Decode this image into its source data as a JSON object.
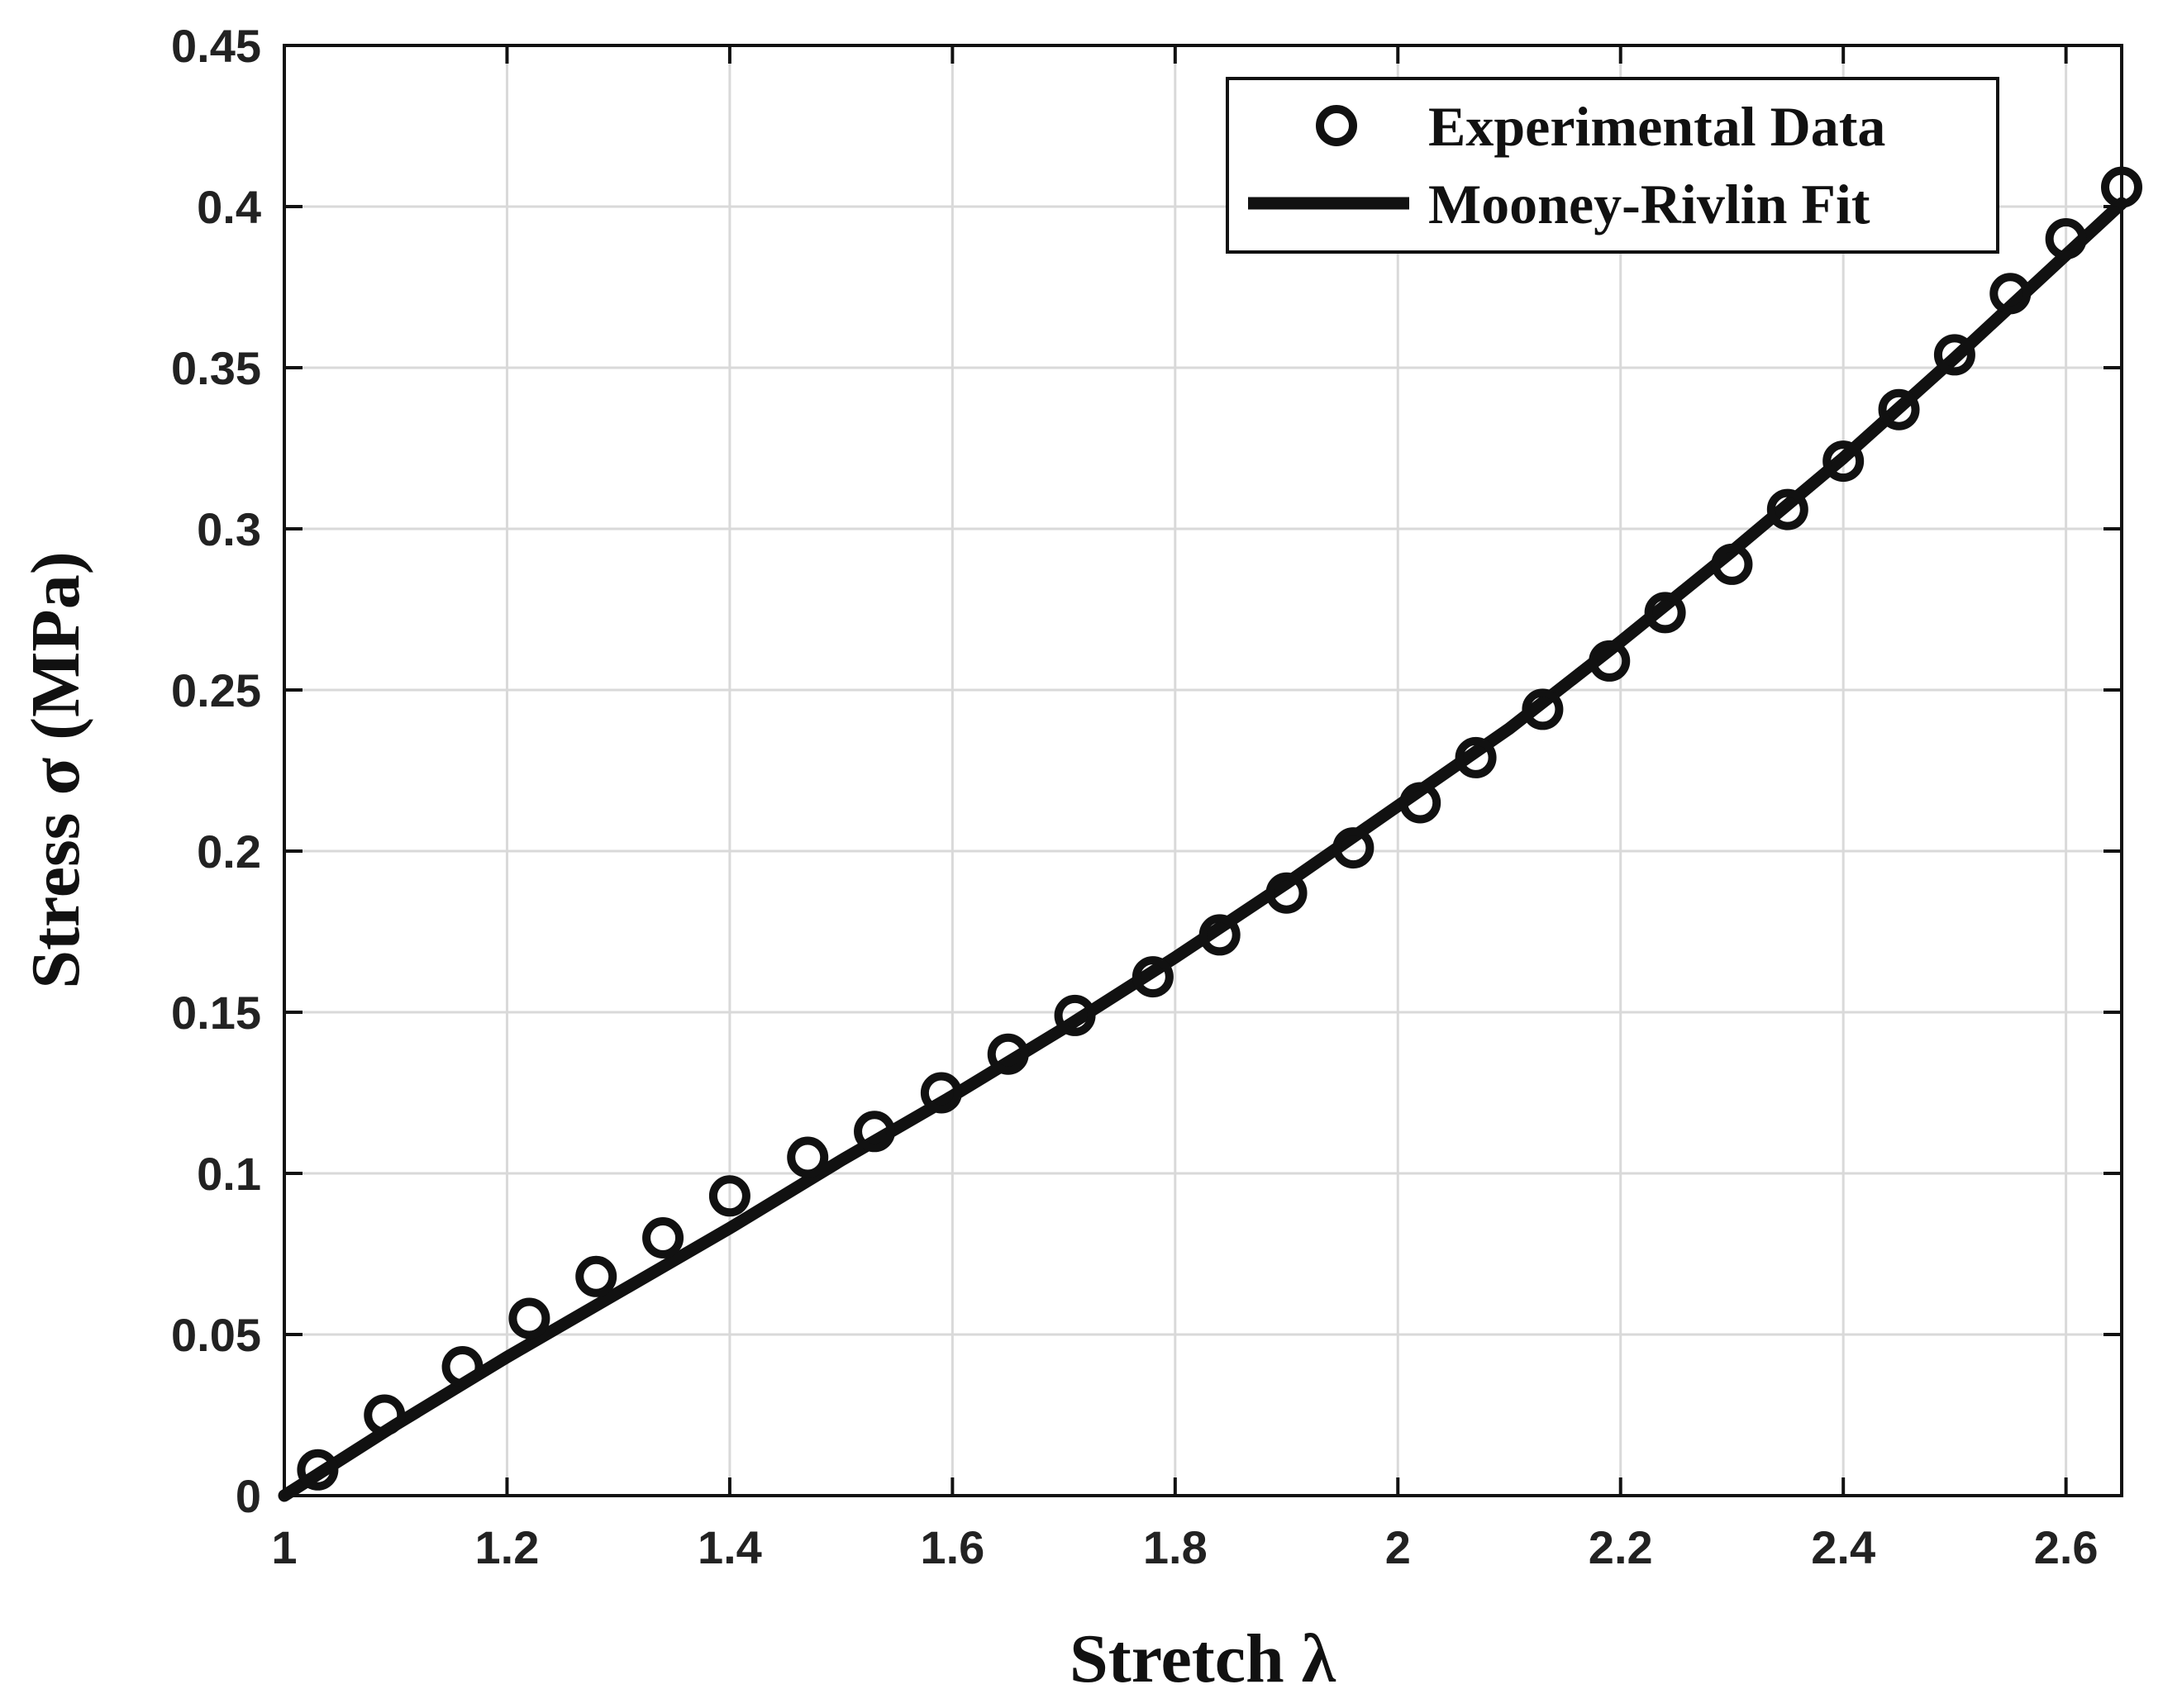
{
  "chart_data": {
    "type": "scatter",
    "xlabel": "Stretch  λ",
    "ylabel": "Stress  σ  (MPa)",
    "xlim": [
      1,
      2.65
    ],
    "ylim": [
      0,
      0.45
    ],
    "grid": true,
    "legend_position": "top-right",
    "x_ticks": [
      1,
      1.2,
      1.4,
      1.6,
      1.8,
      2,
      2.2,
      2.4,
      2.6
    ],
    "x_tick_labels": [
      "1",
      "1.2",
      "1.4",
      "1.6",
      "1.8",
      "2",
      "2.2",
      "2.4",
      "2.6"
    ],
    "y_ticks": [
      0,
      0.05,
      0.1,
      0.15,
      0.2,
      0.25,
      0.3,
      0.35,
      0.4,
      0.45
    ],
    "y_tick_labels": [
      "0",
      "0.05",
      "0.1",
      "0.15",
      "0.2",
      "0.25",
      "0.3",
      "0.35",
      "0.4",
      "0.45"
    ],
    "series": [
      {
        "name": "Experimental Data",
        "kind": "markers",
        "marker": "open-circle",
        "x": [
          1.03,
          1.09,
          1.16,
          1.22,
          1.28,
          1.34,
          1.4,
          1.47,
          1.53,
          1.59,
          1.65,
          1.71,
          1.78,
          1.84,
          1.9,
          1.96,
          2.02,
          2.07,
          2.13,
          2.19,
          2.24,
          2.3,
          2.35,
          2.4,
          2.45,
          2.5,
          2.55,
          2.6,
          2.65
        ],
        "y": [
          0.008,
          0.025,
          0.04,
          0.055,
          0.068,
          0.08,
          0.093,
          0.105,
          0.113,
          0.125,
          0.137,
          0.149,
          0.161,
          0.174,
          0.187,
          0.201,
          0.215,
          0.229,
          0.244,
          0.259,
          0.274,
          0.289,
          0.306,
          0.321,
          0.337,
          0.354,
          0.373,
          0.39,
          0.406
        ]
      },
      {
        "name": "Mooney-Rivlin Fit",
        "kind": "line",
        "x": [
          1.0,
          1.1,
          1.2,
          1.3,
          1.4,
          1.5,
          1.6,
          1.7,
          1.8,
          1.9,
          2.0,
          2.1,
          2.2,
          2.3,
          2.4,
          2.5,
          2.6,
          2.65
        ],
        "y": [
          0.0,
          0.022,
          0.043,
          0.063,
          0.083,
          0.104,
          0.124,
          0.145,
          0.167,
          0.19,
          0.214,
          0.238,
          0.265,
          0.293,
          0.322,
          0.353,
          0.385,
          0.401
        ]
      }
    ]
  },
  "colors": {
    "ink": "#111111",
    "grid": "#d9d9d9",
    "background": "#ffffff"
  }
}
